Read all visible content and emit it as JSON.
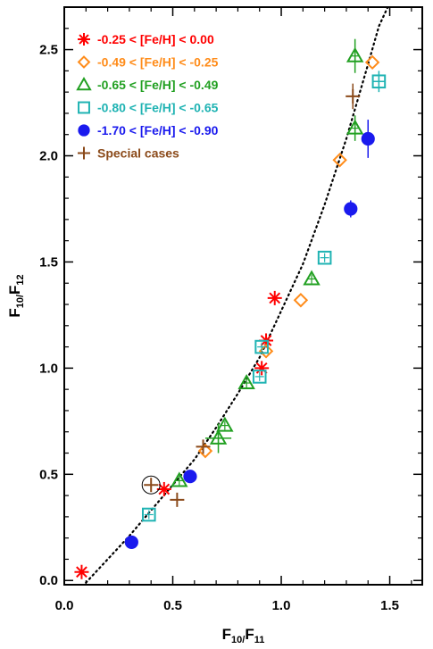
{
  "chart_data": {
    "type": "scatter",
    "title": "",
    "xlabel": "F10/F11",
    "ylabel": "F10/F12",
    "xlabel_parts": {
      "main": "F",
      "sub": "10/",
      "main2": "F",
      "sub2": "11"
    },
    "ylabel_parts": {
      "main": "F",
      "sub": "10/",
      "main2": "F",
      "sub2": "12"
    },
    "xlim": [
      0.0,
      1.65
    ],
    "ylim": [
      -0.02,
      2.7
    ],
    "xticks": [
      0.0,
      0.5,
      1.0,
      1.5
    ],
    "xtick_labels": [
      "0.0",
      "0.5",
      "1.0",
      "1.5"
    ],
    "yticks": [
      0.0,
      0.5,
      1.0,
      1.5,
      2.0,
      2.5
    ],
    "ytick_labels": [
      "0.0",
      "0.5",
      "1.0",
      "1.5",
      "2.0",
      "2.5"
    ],
    "grid": false,
    "legend_position": "top-left",
    "fit_curve": {
      "style": "dotted",
      "x": [
        0.1,
        0.2,
        0.3,
        0.4,
        0.5,
        0.6,
        0.7,
        0.8,
        0.9,
        1.0,
        1.1,
        1.2,
        1.3,
        1.4,
        1.45,
        1.5
      ],
      "y": [
        -0.01,
        0.1,
        0.21,
        0.33,
        0.45,
        0.57,
        0.72,
        0.88,
        1.05,
        1.27,
        1.49,
        1.77,
        2.08,
        2.43,
        2.61,
        2.72
      ]
    },
    "series": [
      {
        "name": "-0.25 < [Fe/H] < 0.00",
        "color": "#ff0000",
        "marker": "asterisk",
        "points": [
          {
            "x": 0.08,
            "y": 0.04
          },
          {
            "x": 0.46,
            "y": 0.43
          },
          {
            "x": 0.91,
            "y": 1.0
          },
          {
            "x": 0.93,
            "y": 1.13
          },
          {
            "x": 0.97,
            "y": 1.33
          }
        ]
      },
      {
        "name": "-0.49 < [Fe/H] < -0.25",
        "color": "#ff8c1a",
        "marker": "diamond",
        "points": [
          {
            "x": 0.65,
            "y": 0.61
          },
          {
            "x": 0.93,
            "y": 1.08
          },
          {
            "x": 1.09,
            "y": 1.32
          },
          {
            "x": 1.27,
            "y": 1.98
          },
          {
            "x": 1.42,
            "y": 2.44
          }
        ]
      },
      {
        "name": "-0.65 < [Fe/H] < -0.49",
        "color": "#22a022",
        "marker": "triangle",
        "points": [
          {
            "x": 0.53,
            "y": 0.47
          },
          {
            "x": 0.71,
            "y": 0.67,
            "xerr": 0.06,
            "yerr": 0.07
          },
          {
            "x": 0.74,
            "y": 0.73
          },
          {
            "x": 0.84,
            "y": 0.93
          },
          {
            "x": 1.14,
            "y": 1.42
          },
          {
            "x": 1.34,
            "y": 2.13,
            "yerr": 0.06
          },
          {
            "x": 1.34,
            "y": 2.47,
            "yerr": 0.08
          }
        ]
      },
      {
        "name": "-0.80 < [Fe/H] < -0.65",
        "color": "#1fb3b3",
        "marker": "square",
        "points": [
          {
            "x": 0.39,
            "y": 0.31
          },
          {
            "x": 0.9,
            "y": 0.96
          },
          {
            "x": 0.91,
            "y": 1.1
          },
          {
            "x": 1.2,
            "y": 1.52
          },
          {
            "x": 1.45,
            "y": 2.35,
            "xerr": 0.03,
            "yerr": 0.05
          }
        ]
      },
      {
        "name": "-1.70 < [Fe/H] < -0.90",
        "color": "#1a1aee",
        "marker": "circle",
        "points": [
          {
            "x": 0.31,
            "y": 0.18
          },
          {
            "x": 0.58,
            "y": 0.49
          },
          {
            "x": 1.32,
            "y": 1.75,
            "yerr": 0.04
          },
          {
            "x": 1.4,
            "y": 2.08,
            "yerr": 0.09
          }
        ]
      },
      {
        "name": "Special cases",
        "color": "#8b4a1a",
        "marker": "plus",
        "points": [
          {
            "x": 0.4,
            "y": 0.45,
            "circled": true
          },
          {
            "x": 0.52,
            "y": 0.38
          },
          {
            "x": 0.64,
            "y": 0.63
          },
          {
            "x": 1.33,
            "y": 2.28,
            "yerr": 0.06
          }
        ]
      }
    ]
  }
}
